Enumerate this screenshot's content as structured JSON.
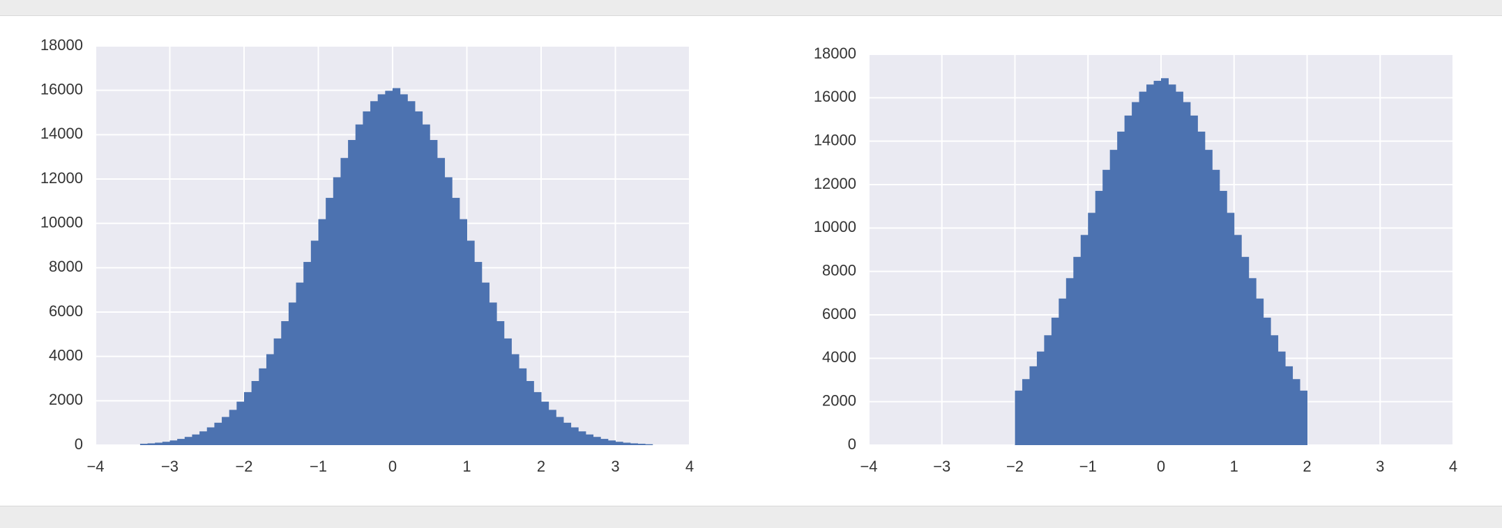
{
  "chart_data": [
    {
      "type": "histogram",
      "color": "#4c72b0",
      "grid": true,
      "bins": [
        -3.4,
        -3.3,
        -3.2,
        -3.1,
        -3.0,
        -2.9,
        -2.8,
        -2.7,
        -2.6,
        -2.5,
        -2.4,
        -2.3,
        -2.2,
        -2.1,
        -2.0,
        -1.9,
        -1.8,
        -1.7,
        -1.6,
        -1.5,
        -1.4,
        -1.3,
        -1.2,
        -1.1,
        -1.0,
        -0.9,
        -0.8,
        -0.7,
        -0.6,
        -0.5,
        -0.4,
        -0.3,
        -0.2,
        -0.1,
        0.0,
        0.1,
        0.2,
        0.3,
        0.4,
        0.5,
        0.6,
        0.7,
        0.8,
        0.9,
        1.0,
        1.1,
        1.2,
        1.3,
        1.4,
        1.5,
        1.6,
        1.7,
        1.8,
        1.9,
        2.0,
        2.1,
        2.2,
        2.3,
        2.4,
        2.5,
        2.6,
        2.7,
        2.8,
        2.9,
        3.0,
        3.1,
        3.2,
        3.3,
        3.4,
        3.5
      ],
      "values": [
        60,
        80,
        110,
        150,
        210,
        280,
        370,
        480,
        620,
        800,
        1010,
        1270,
        1590,
        1960,
        2390,
        2890,
        3460,
        4100,
        4810,
        5590,
        6430,
        7330,
        8260,
        9220,
        10190,
        11150,
        12080,
        12950,
        13760,
        14460,
        15050,
        15510,
        15820,
        15980,
        16100,
        15820,
        15510,
        15050,
        14460,
        13760,
        12950,
        12080,
        11150,
        10190,
        9220,
        8260,
        7330,
        6430,
        5590,
        4810,
        4100,
        3460,
        2890,
        2390,
        1960,
        1590,
        1270,
        1010,
        800,
        620,
        480,
        370,
        280,
        210,
        150,
        110,
        80,
        60,
        40
      ],
      "xlim": [
        -4,
        4
      ],
      "ylim": [
        0,
        18000
      ],
      "xticks": [
        {
          "value": -4,
          "label": "−4"
        },
        {
          "value": -3,
          "label": "−3"
        },
        {
          "value": -2,
          "label": "−2"
        },
        {
          "value": -1,
          "label": "−1"
        },
        0,
        1,
        2,
        3,
        4
      ],
      "yticks": [
        0,
        2000,
        4000,
        6000,
        8000,
        10000,
        12000,
        14000,
        16000,
        18000
      ]
    },
    {
      "type": "histogram",
      "color": "#4c72b0",
      "grid": true,
      "bins": [
        -2.0,
        -1.9,
        -1.8,
        -1.7,
        -1.6,
        -1.5,
        -1.4,
        -1.3,
        -1.2,
        -1.1,
        -1.0,
        -0.9,
        -0.8,
        -0.7,
        -0.6,
        -0.5,
        -0.4,
        -0.3,
        -0.2,
        -0.1,
        0.0,
        0.1,
        0.2,
        0.3,
        0.4,
        0.5,
        0.6,
        0.7,
        0.8,
        0.9,
        1.0,
        1.1,
        1.2,
        1.3,
        1.4,
        1.5,
        1.6,
        1.7,
        1.8,
        1.9,
        2.0
      ],
      "values": [
        2510,
        3040,
        3630,
        4310,
        5060,
        5870,
        6750,
        7690,
        8670,
        9680,
        10700,
        11710,
        12680,
        13600,
        14440,
        15180,
        15800,
        16280,
        16610,
        16780,
        16900,
        16610,
        16280,
        15800,
        15180,
        14440,
        13600,
        12680,
        11710,
        10700,
        9680,
        8670,
        7690,
        6750,
        5870,
        5060,
        4310,
        3630,
        3040,
        2510
      ],
      "xlim": [
        -4,
        4
      ],
      "ylim": [
        0,
        18000
      ],
      "xticks": [
        {
          "value": -4,
          "label": "−4"
        },
        {
          "value": -3,
          "label": "−3"
        },
        {
          "value": -2,
          "label": "−2"
        },
        {
          "value": -1,
          "label": "−1"
        },
        0,
        1,
        2,
        3,
        4
      ],
      "yticks": [
        0,
        2000,
        4000,
        6000,
        8000,
        10000,
        12000,
        14000,
        16000,
        18000
      ]
    }
  ]
}
